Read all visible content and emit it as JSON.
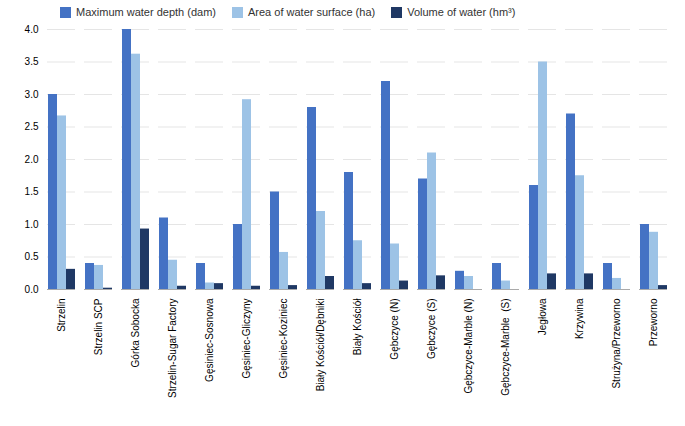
{
  "chart_data": {
    "type": "bar",
    "categories": [
      "Strzelin",
      "Strzelin SCP",
      "Górka Sobocka",
      "Strzelin-Sugar Factory",
      "Gęsiniec-Sosnowa",
      "Gęsiniec-Gliczyny",
      "Gęsiniec-Koziniec",
      "Biały Kościół/Dębniki",
      "Biały Kościół",
      "Gębczyce (N)",
      "Gębczyce (S)",
      "Gębczyce-Marble (N)",
      "Gębczyce-Marble  (S)",
      "Jegłowa",
      "Krzywina",
      "Strużyna/Przeworno",
      "Przeworno"
    ],
    "series": [
      {
        "name": "Maximum water depth (dam)",
        "color": "#4472c4",
        "values": [
          3.0,
          0.4,
          4.0,
          1.1,
          0.4,
          1.0,
          1.5,
          2.8,
          1.8,
          3.2,
          1.7,
          0.28,
          0.4,
          1.6,
          2.7,
          0.4,
          1.0
        ]
      },
      {
        "name": "Area of water surface (ha)",
        "color": "#9dc3e6",
        "values": [
          2.67,
          0.37,
          3.62,
          0.45,
          0.1,
          2.92,
          0.57,
          1.2,
          0.75,
          0.7,
          2.1,
          0.2,
          0.13,
          3.5,
          1.75,
          0.17,
          0.88
        ]
      },
      {
        "name": "Volume of water (hm³)",
        "color": "#1f3864",
        "values": [
          0.31,
          0.02,
          0.93,
          0.05,
          0.09,
          0.05,
          0.06,
          0.2,
          0.09,
          0.13,
          0.21,
          0.0,
          0.0,
          0.24,
          0.24,
          0.0,
          0.06
        ]
      }
    ],
    "ylim": [
      0,
      4.0
    ],
    "yticks": [
      {
        "value": 0,
        "label": "0.0"
      },
      0.5,
      {
        "value": 1,
        "label": "1.0"
      },
      1.5,
      {
        "value": 2,
        "label": "2.0"
      },
      2.5,
      {
        "value": 3,
        "label": "3.0"
      },
      3.5,
      {
        "value": 4,
        "label": "4.0"
      }
    ],
    "grid": true,
    "legend": "upper left"
  }
}
